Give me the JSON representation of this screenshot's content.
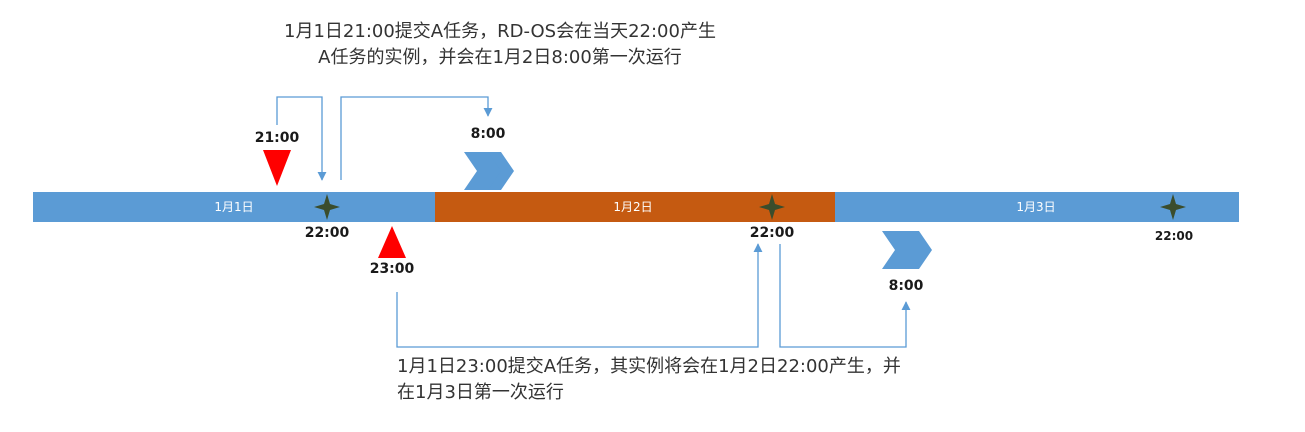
{
  "colors": {
    "day_blue": "#5b9bd5",
    "day_orange": "#c55a11",
    "marker_red": "#ff0000",
    "star_green": "#3b4d2c",
    "chevron_blue": "#5b9bd5",
    "connector_blue": "#5b9bd5"
  },
  "timeline": {
    "segments": [
      {
        "label": "1月1日",
        "color": "#5b9bd5"
      },
      {
        "label": "1月2日",
        "color": "#c55a11"
      },
      {
        "label": "1月3日",
        "color": "#5b9bd5"
      }
    ]
  },
  "markers": {
    "submit_1": {
      "time": "21:00"
    },
    "submit_2": {
      "time": "23:00"
    }
  },
  "instances": {
    "inst_1": {
      "time": "22:00"
    },
    "inst_2": {
      "time": "22:00"
    },
    "inst_3": {
      "time": "22:00"
    }
  },
  "runs": {
    "run_1": {
      "time": "8:00"
    },
    "run_2": {
      "time": "8:00"
    }
  },
  "captions": {
    "top": {
      "line1": "1月1日21:00提交A任务，RD-OS会在当天22:00产生",
      "line2": "A任务的实例，并会在1月2日8:00第一次运行"
    },
    "bottom": {
      "line1": "1月1日23:00提交A任务，其实例将会在1月2日22:00产生，并",
      "line2": "在1月3日第一次运行"
    }
  }
}
